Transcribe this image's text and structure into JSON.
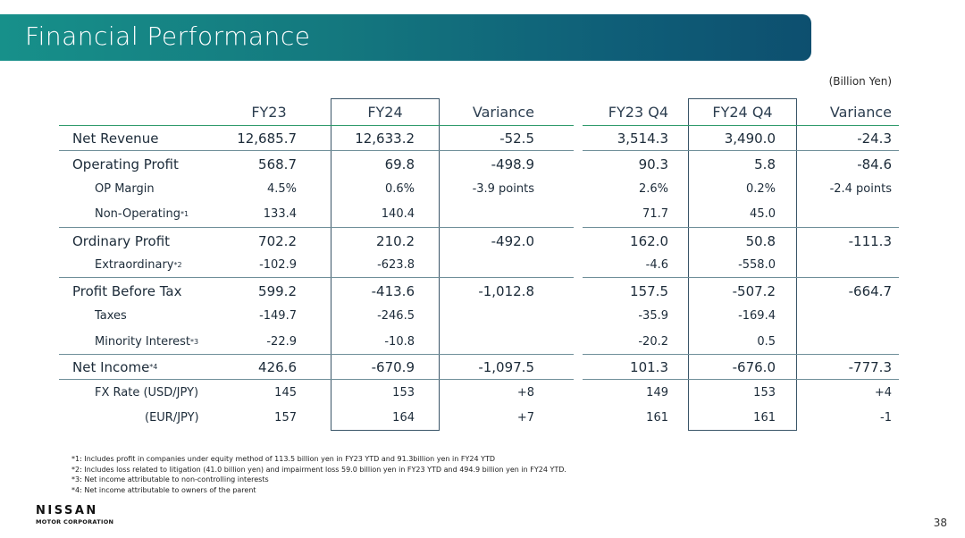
{
  "title": "Financial Performance",
  "unit": "(Billion Yen)",
  "headers": [
    "FY23",
    "FY24",
    "Variance",
    "FY23 Q4",
    "FY24 Q4",
    "Variance"
  ],
  "rows": [
    {
      "label": "Net Revenue",
      "sup": "",
      "values": [
        "12,685.7",
        "12,633.2",
        "-52.5",
        "3,514.3",
        "3,490.0",
        "-24.3"
      ]
    },
    {
      "label": "Operating Profit",
      "sup": "",
      "values": [
        "568.7",
        "69.8",
        "-498.9",
        "90.3",
        "5.8",
        "-84.6"
      ]
    },
    {
      "label": "OP Margin",
      "sup": "",
      "values": [
        "4.5%",
        "0.6%",
        "-3.9 points",
        "2.6%",
        "0.2%",
        "-2.4 points"
      ]
    },
    {
      "label": "Non-Operating",
      "sup": "*1",
      "values": [
        "133.4",
        "140.4",
        "",
        "71.7",
        "45.0",
        ""
      ]
    },
    {
      "label": "Ordinary Profit",
      "sup": "",
      "values": [
        "702.2",
        "210.2",
        "-492.0",
        "162.0",
        "50.8",
        "-111.3"
      ]
    },
    {
      "label": "Extraordinary",
      "sup": "*2",
      "values": [
        "-102.9",
        "-623.8",
        "",
        "-4.6",
        "-558.0",
        ""
      ]
    },
    {
      "label": "Profit Before Tax",
      "sup": "",
      "values": [
        "599.2",
        "-413.6",
        "-1,012.8",
        "157.5",
        "-507.2",
        "-664.7"
      ]
    },
    {
      "label": "Taxes",
      "sup": "",
      "values": [
        "-149.7",
        "-246.5",
        "",
        "-35.9",
        "-169.4",
        ""
      ]
    },
    {
      "label": "Minority Interest",
      "sup": "*3",
      "values": [
        "-22.9",
        "-10.8",
        "",
        "-20.2",
        "0.5",
        ""
      ]
    },
    {
      "label": "Net Income",
      "sup": "*4",
      "values": [
        "426.6",
        "-670.9",
        "-1,097.5",
        "101.3",
        "-676.0",
        "-777.3"
      ]
    },
    {
      "label": "FX Rate (USD/JPY)",
      "sup": "",
      "values": [
        "145",
        "153",
        "+8",
        "149",
        "153",
        "+4"
      ]
    },
    {
      "label": "(EUR/JPY)",
      "sup": "",
      "values": [
        "157",
        "164",
        "+7",
        "161",
        "161",
        "-1"
      ]
    }
  ],
  "footnotes": [
    "*1: Includes profit in companies under equity method of 113.5 billion yen in FY23 YTD and 91.3billion yen in FY24 YTD",
    "*2: Includes loss related to litigation (41.0 billion yen) and impairment loss 59.0 billion yen in FY23 YTD and 494.9 billion yen in FY24 YTD.",
    "*3: Net income attributable to non-controlling interests",
    "*4: Net income attributable to owners of the parent"
  ],
  "logo": {
    "main": "NISSAN",
    "sub": "MOTOR CORPORATION"
  },
  "page_number": "38",
  "colors": {
    "banner_start": "#17908a",
    "banner_end": "#0d4f6f",
    "rule_green": "#2e9a6a",
    "box_border": "#3a5568"
  }
}
